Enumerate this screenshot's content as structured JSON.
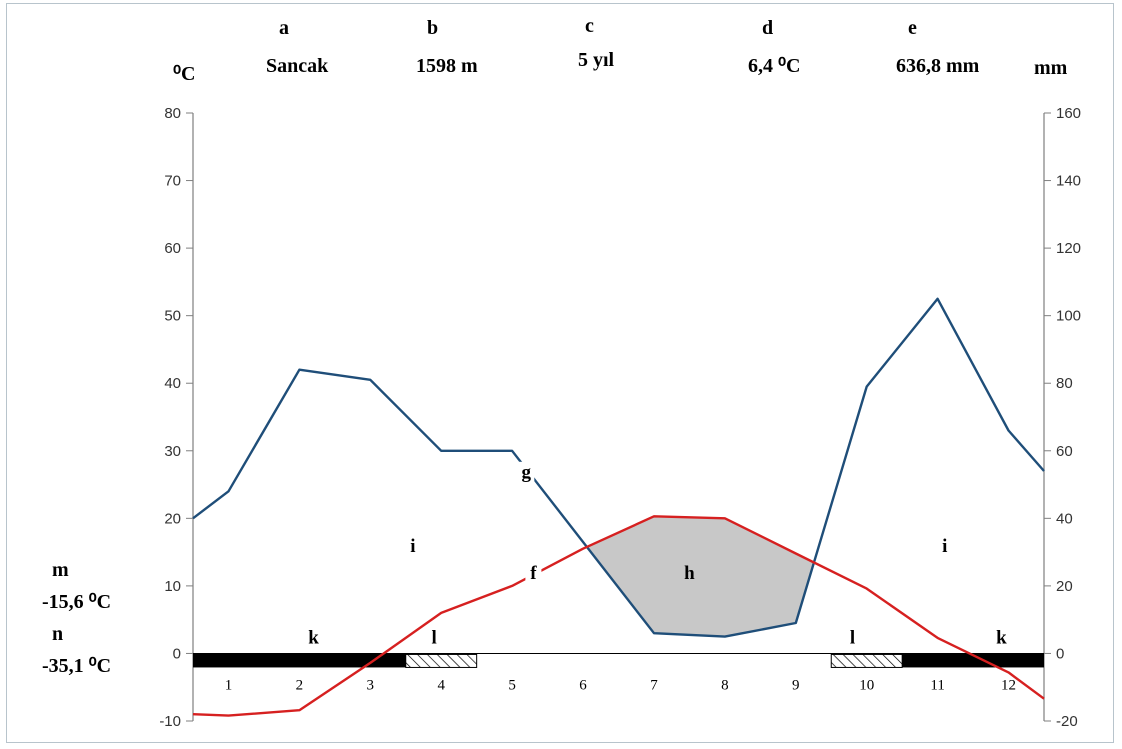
{
  "chart_data": {
    "type": "line",
    "header": [
      {
        "letter": "a",
        "value": "Sancak"
      },
      {
        "letter": "b",
        "value": "1598 m"
      },
      {
        "letter": "c",
        "value": "5 yıl"
      },
      {
        "letter": "d",
        "value": "6,4 ⁰C"
      },
      {
        "letter": "e",
        "value": "636,8 mm"
      }
    ],
    "y_left_unit": "⁰C",
    "y_right_unit": "mm",
    "y_left_range": [
      -10,
      80
    ],
    "y_left_ticks": [
      -10,
      0,
      10,
      20,
      30,
      40,
      50,
      60,
      70,
      80
    ],
    "y_right_range": [
      -20,
      160
    ],
    "y_right_ticks": [
      -20,
      0,
      20,
      40,
      60,
      80,
      100,
      120,
      140,
      160
    ],
    "months": [
      "1",
      "2",
      "3",
      "4",
      "5",
      "6",
      "7",
      "8",
      "9",
      "10",
      "11",
      "12"
    ],
    "series": [
      {
        "key": "precipitation",
        "axis": "right",
        "color": "#1f4e79",
        "x": [
          0.5,
          1.0,
          2.0,
          3.0,
          4.0,
          5.0,
          7.0,
          8.0,
          9.0,
          10.0,
          11.0,
          12.0,
          12.5
        ],
        "values": [
          40,
          48,
          84,
          81,
          60,
          60,
          6,
          5,
          9,
          79,
          105,
          66,
          54
        ]
      },
      {
        "key": "temperature",
        "axis": "left",
        "color": "#d62020",
        "x": [
          0.5,
          1.0,
          2.0,
          3.0,
          4.0,
          5.0,
          6.0,
          7.0,
          8.0,
          9.0,
          10.0,
          11.0,
          12.0,
          12.5
        ],
        "values": [
          -9,
          -9.2,
          -8.4,
          -1.4,
          6,
          10,
          15.5,
          20.3,
          20,
          14.8,
          9.6,
          2.3,
          -2.8,
          -6.7
        ]
      }
    ],
    "frost_bars": [
      {
        "type": "solid",
        "from": 0.5,
        "to": 3.5
      },
      {
        "type": "hatched",
        "from": 3.5,
        "to": 4.5
      },
      {
        "type": "hatched",
        "from": 9.5,
        "to": 10.5
      },
      {
        "type": "solid",
        "from": 10.5,
        "to": 12.5
      }
    ],
    "annotations": [
      {
        "text": "k",
        "x": 2.2,
        "y": 1.5
      },
      {
        "text": "l",
        "x": 3.9,
        "y": 1.5
      },
      {
        "text": "i",
        "x": 3.6,
        "y": 15
      },
      {
        "text": "g",
        "x": 5.2,
        "y": 26
      },
      {
        "text": "f",
        "x": 5.3,
        "y": 11
      },
      {
        "text": "h",
        "x": 7.5,
        "y": 11
      },
      {
        "text": "l",
        "x": 9.8,
        "y": 1.5
      },
      {
        "text": "i",
        "x": 11.1,
        "y": 15
      },
      {
        "text": "k",
        "x": 11.9,
        "y": 1.5
      }
    ],
    "extremes": [
      {
        "letter": "m",
        "value": "-15,6 ⁰C"
      },
      {
        "letter": "n",
        "value": "-35,1 ⁰C"
      }
    ]
  }
}
